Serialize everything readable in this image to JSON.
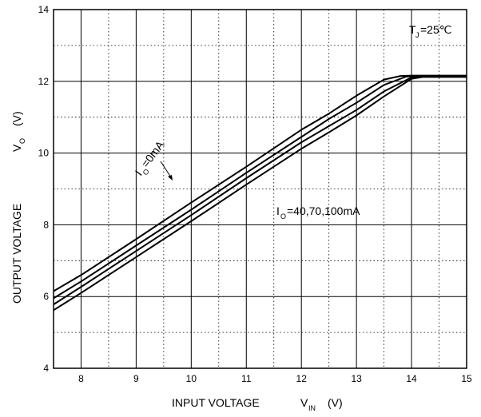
{
  "chart_data": {
    "type": "line",
    "xlabel": {
      "text": "INPUT VOLTAGE",
      "symbol": "V",
      "subscript": "IN",
      "unit": "(V)"
    },
    "ylabel": {
      "text": "OUTPUT VOLTAGE",
      "symbol": "V",
      "subscript": "O",
      "unit": "(V)"
    },
    "xlim": [
      7.5,
      15
    ],
    "ylim": [
      4,
      14
    ],
    "x_ticks": [
      "8",
      "9",
      "10",
      "11",
      "12",
      "13",
      "14",
      "15"
    ],
    "y_ticks": [
      "4",
      "6",
      "8",
      "10",
      "12",
      "14"
    ],
    "grid": true,
    "annotations": {
      "temperature": {
        "symbol": "T",
        "subscript": "J",
        "value": "=25℃"
      },
      "io_zero": {
        "symbol": "I",
        "subscript": "O",
        "value": "=0mA"
      },
      "io_loads": {
        "symbol": "I",
        "subscript": "O",
        "value": "=40,70,100mA"
      }
    },
    "series": [
      {
        "values": [
          [
            7.5,
            6.15
          ],
          [
            8,
            6.6
          ],
          [
            9,
            7.6
          ],
          [
            10,
            8.62
          ],
          [
            11,
            9.62
          ],
          [
            12,
            10.65
          ],
          [
            12.5,
            11.1
          ],
          [
            13,
            11.6
          ],
          [
            13.5,
            12.05
          ],
          [
            13.8,
            12.15
          ],
          [
            14,
            12.16
          ],
          [
            15,
            12.16
          ]
        ]
      },
      {
        "values": [
          [
            7.5,
            5.95
          ],
          [
            8,
            6.42
          ],
          [
            9,
            7.42
          ],
          [
            10,
            8.42
          ],
          [
            11,
            9.45
          ],
          [
            12,
            10.45
          ],
          [
            12.5,
            10.95
          ],
          [
            13,
            11.4
          ],
          [
            13.5,
            11.9
          ],
          [
            13.9,
            12.13
          ],
          [
            14.1,
            12.15
          ],
          [
            15,
            12.15
          ]
        ]
      },
      {
        "values": [
          [
            7.5,
            5.78
          ],
          [
            8,
            6.27
          ],
          [
            9,
            7.27
          ],
          [
            10,
            8.27
          ],
          [
            11,
            9.3
          ],
          [
            12,
            10.3
          ],
          [
            12.5,
            10.75
          ],
          [
            13,
            11.2
          ],
          [
            13.5,
            11.72
          ],
          [
            14,
            12.11
          ],
          [
            14.2,
            12.14
          ],
          [
            15,
            12.14
          ]
        ]
      },
      {
        "values": [
          [
            7.5,
            5.62
          ],
          [
            8,
            6.1
          ],
          [
            9,
            7.1
          ],
          [
            10,
            8.1
          ],
          [
            11,
            9.12
          ],
          [
            12,
            10.12
          ],
          [
            12.5,
            10.58
          ],
          [
            13,
            11.05
          ],
          [
            13.5,
            11.58
          ],
          [
            14,
            12.07
          ],
          [
            14.2,
            12.12
          ],
          [
            15,
            12.12
          ]
        ]
      }
    ]
  }
}
